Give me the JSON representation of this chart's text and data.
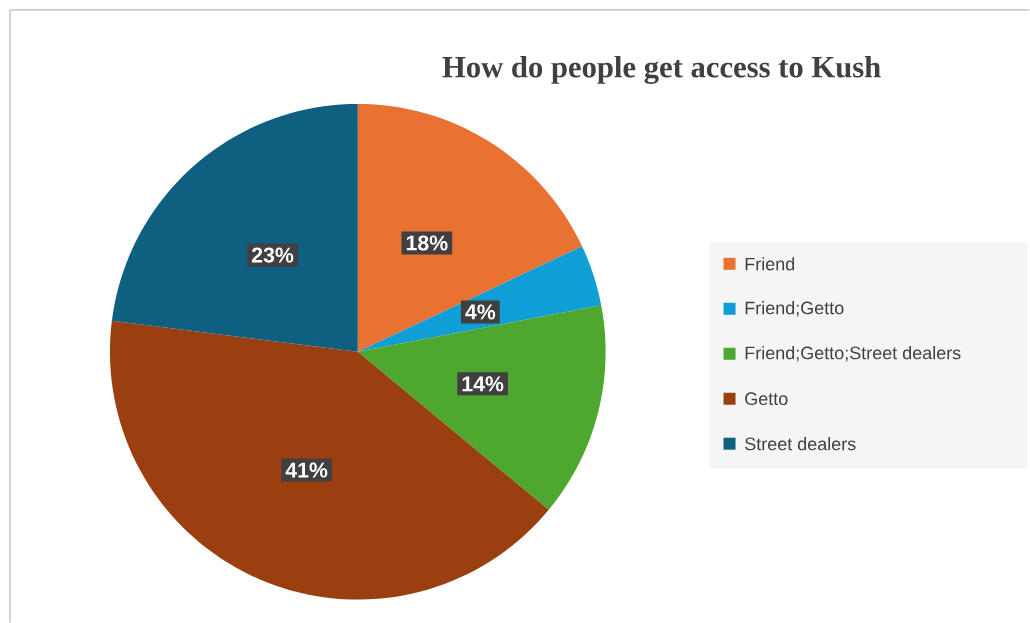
{
  "chart_data": {
    "type": "pie",
    "title": "How do people get access to Kush",
    "categories": [
      "Friend",
      "Friend;Getto",
      "Friend;Getto;Street dealers",
      "Getto",
      "Street dealers"
    ],
    "values": [
      18,
      4,
      14,
      41,
      23
    ],
    "colors": [
      "#e97132",
      "#0f9ed5",
      "#4ea72e",
      "#9a3f10",
      "#0e5f80"
    ],
    "data_labels": true,
    "value_labels": [
      "18%",
      "4%",
      "14%",
      "41%",
      "23%"
    ],
    "legend": "right"
  }
}
